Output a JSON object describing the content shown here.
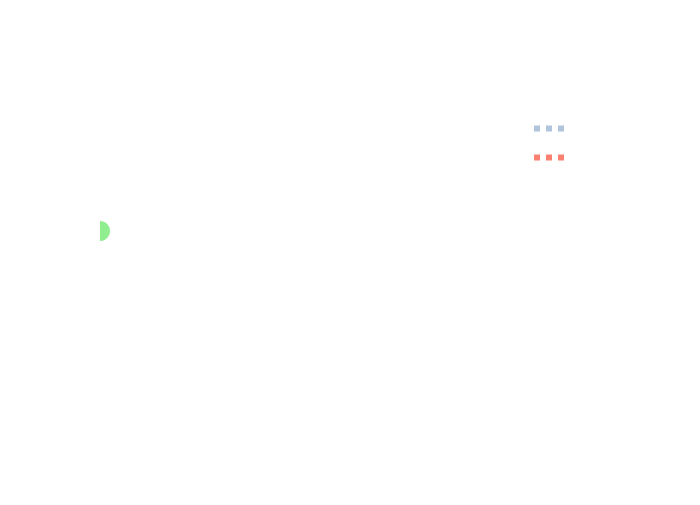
{
  "legend": {
    "items": [
      {
        "color": "#b0c4de"
      },
      {
        "color": "#fa8072"
      }
    ]
  },
  "marker": {
    "color": "#90ee90"
  }
}
